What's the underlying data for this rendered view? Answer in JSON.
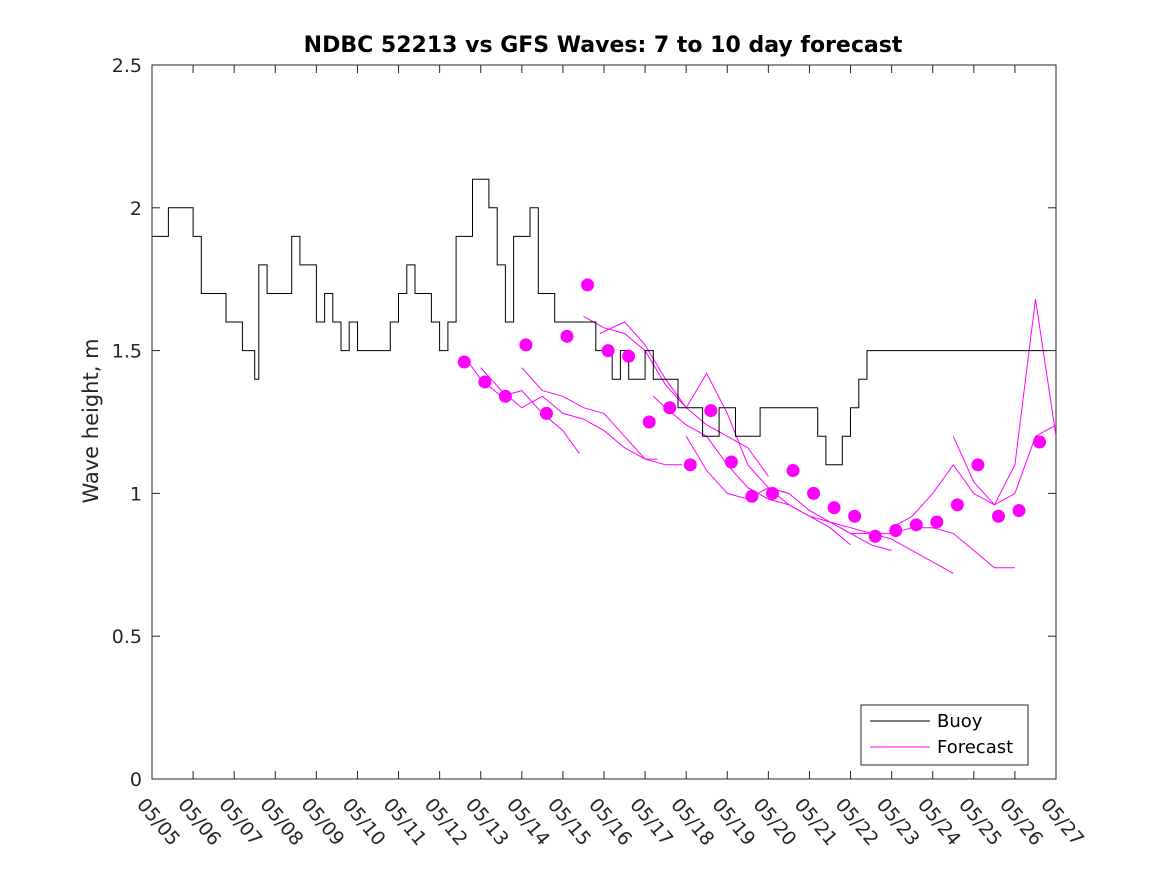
{
  "chart_data": {
    "type": "line",
    "title": "NDBC 52213 vs GFS Waves: 7 to 10 day forecast",
    "xlabel": "",
    "ylabel": "Wave height, m",
    "x_tick_labels": [
      "05/05",
      "05/06",
      "05/07",
      "05/08",
      "05/09",
      "05/10",
      "05/11",
      "05/12",
      "05/13",
      "05/14",
      "05/15",
      "05/16",
      "05/17",
      "05/18",
      "05/19",
      "05/20",
      "05/21",
      "05/22",
      "05/23",
      "05/24",
      "05/25",
      "05/26",
      "05/27"
    ],
    "y_ticks": [
      0,
      0.5,
      1,
      1.5,
      2,
      2.5
    ],
    "y_tick_labels": [
      "0",
      "0.5",
      "1",
      "1.5",
      "2",
      "2.5"
    ],
    "xlim": [
      "05/05",
      "05/27"
    ],
    "ylim": [
      0,
      2.5
    ],
    "grid": false,
    "legend_position": "bottom-right",
    "colors": {
      "buoy": "#000000",
      "forecast": "#ff00ff"
    },
    "series": [
      {
        "name": "Buoy",
        "x_days_since_05_05": [
          0,
          0.2,
          0.4,
          0.6,
          0.8,
          1.0,
          1.2,
          1.4,
          1.6,
          1.8,
          2.0,
          2.2,
          2.4,
          2.5,
          2.6,
          2.8,
          3.0,
          3.2,
          3.4,
          3.6,
          3.8,
          4.0,
          4.2,
          4.4,
          4.6,
          4.8,
          5.0,
          5.2,
          5.4,
          5.6,
          5.8,
          6.0,
          6.2,
          6.4,
          6.6,
          6.8,
          7.0,
          7.2,
          7.4,
          7.6,
          7.8,
          8.0,
          8.2,
          8.4,
          8.6,
          8.8,
          9.0,
          9.2,
          9.4,
          9.6,
          9.8,
          10.0,
          10.2,
          10.4,
          10.6,
          10.8,
          11.0,
          11.2,
          11.4,
          11.6,
          11.8,
          12.0,
          12.2,
          12.4,
          12.6,
          12.8,
          13.0,
          13.2,
          13.4,
          13.6,
          13.8,
          14.0,
          14.2,
          14.4,
          14.6,
          14.8,
          15.0,
          15.2,
          15.4,
          15.6,
          15.8,
          16.0,
          16.2,
          16.4,
          16.6,
          16.8,
          17.0,
          17.2,
          17.4,
          17.6,
          17.8,
          18.0,
          18.2,
          18.4,
          18.6,
          18.8,
          19.0,
          19.2,
          19.4,
          19.6,
          19.8,
          20.0,
          20.2,
          20.4,
          20.6,
          20.8,
          21.0,
          21.2,
          21.4,
          21.6,
          21.8
        ],
        "values": [
          1.9,
          1.9,
          2.0,
          2.0,
          2.0,
          1.9,
          1.7,
          1.7,
          1.7,
          1.6,
          1.6,
          1.5,
          1.5,
          1.4,
          1.8,
          1.7,
          1.7,
          1.7,
          1.9,
          1.8,
          1.8,
          1.6,
          1.7,
          1.6,
          1.5,
          1.6,
          1.5,
          1.5,
          1.5,
          1.5,
          1.6,
          1.7,
          1.8,
          1.7,
          1.7,
          1.6,
          1.5,
          1.6,
          1.9,
          1.9,
          2.1,
          2.1,
          2.0,
          1.8,
          1.6,
          1.9,
          1.9,
          2.0,
          1.7,
          1.7,
          1.6,
          1.6,
          1.6,
          1.6,
          1.6,
          1.5,
          1.5,
          1.4,
          1.5,
          1.4,
          1.4,
          1.5,
          1.4,
          1.4,
          1.4,
          1.3,
          1.3,
          1.3,
          1.2,
          1.2,
          1.3,
          1.3,
          1.2,
          1.2,
          1.2,
          1.3,
          1.3,
          1.3,
          1.3,
          1.3,
          1.3,
          1.3,
          1.2,
          1.1,
          1.1,
          1.2,
          1.3,
          1.4,
          1.5,
          1.5,
          1.5,
          1.5,
          1.5,
          1.5,
          1.5,
          1.5,
          1.5,
          1.5,
          1.5,
          1.5,
          1.5,
          1.5,
          1.5,
          1.5,
          1.5,
          1.5,
          1.5,
          1.5,
          1.5,
          1.5
        ]
      },
      {
        "name": "Forecast",
        "forecast_runs": [
          {
            "x_days_since_05_05": [
              7.6,
              8.0,
              8.5,
              9.0,
              9.5,
              10.0,
              10.4
            ],
            "values": [
              1.48,
              1.4,
              1.34,
              1.36,
              1.28,
              1.22,
              1.14
            ]
          },
          {
            "x_days_since_05_05": [
              8.0,
              8.5,
              9.0,
              9.5,
              10.0,
              10.5,
              11.0,
              11.5,
              12.0,
              12.3
            ],
            "values": [
              1.44,
              1.36,
              1.3,
              1.34,
              1.28,
              1.26,
              1.22,
              1.16,
              1.12,
              1.12
            ]
          },
          {
            "x_days_since_05_05": [
              9.0,
              9.5,
              10.0,
              10.5,
              11.0,
              11.5,
              12.0,
              12.5,
              12.9
            ],
            "values": [
              1.44,
              1.36,
              1.34,
              1.3,
              1.28,
              1.2,
              1.12,
              1.1,
              1.1
            ]
          },
          {
            "x_days_since_05_05": [
              10.5,
              11.0,
              11.5,
              12.0,
              12.5,
              13.0,
              13.5,
              14.0,
              14.5,
              15.0
            ],
            "values": [
              1.62,
              1.58,
              1.56,
              1.5,
              1.38,
              1.3,
              1.24,
              1.2,
              1.16,
              1.06
            ]
          },
          {
            "x_days_since_05_05": [
              10.9,
              11.5,
              12.0,
              12.5,
              13.0,
              13.5,
              14.0,
              14.5,
              15.0,
              15.5
            ],
            "values": [
              1.56,
              1.6,
              1.52,
              1.4,
              1.3,
              1.42,
              1.28,
              1.1,
              1.02,
              1.0
            ]
          },
          {
            "x_days_since_05_05": [
              12.2,
              12.5,
              13.0,
              13.5,
              14.0,
              14.5,
              15.0,
              15.5,
              16.0,
              16.5,
              17.0
            ],
            "values": [
              1.34,
              1.3,
              1.24,
              1.2,
              1.1,
              1.02,
              0.98,
              0.96,
              0.92,
              0.88,
              0.82
            ]
          },
          {
            "x_days_since_05_05": [
              13.0,
              13.5,
              14.0,
              14.5,
              15.0,
              15.5,
              16.0,
              16.5,
              17.0,
              17.5,
              18.0
            ],
            "values": [
              1.2,
              1.08,
              1.0,
              0.98,
              1.02,
              1.0,
              0.94,
              0.9,
              0.86,
              0.82,
              0.8
            ]
          },
          {
            "x_days_since_05_05": [
              15.0,
              15.5,
              16.0,
              16.5,
              17.0,
              17.5,
              18.0,
              18.5,
              19.0,
              19.5
            ],
            "values": [
              1.02,
              0.96,
              0.92,
              0.9,
              0.88,
              0.86,
              0.84,
              0.8,
              0.76,
              0.72
            ]
          },
          {
            "x_days_since_05_05": [
              16.0,
              16.5,
              17.0,
              17.5,
              18.0,
              18.5,
              19.0,
              19.5,
              20.0,
              20.5,
              21.0
            ],
            "values": [
              0.94,
              0.9,
              0.86,
              0.86,
              0.86,
              0.88,
              0.88,
              0.86,
              0.8,
              0.74,
              0.74
            ]
          },
          {
            "x_days_since_05_05": [
              18.0,
              18.5,
              19.0,
              19.5,
              20.0,
              20.5,
              21.0,
              21.5,
              22.0
            ],
            "values": [
              0.88,
              0.92,
              1.0,
              1.1,
              1.0,
              0.96,
              1.1,
              1.68,
              1.2
            ]
          },
          {
            "x_days_since_05_05": [
              19.5,
              20.0,
              20.5,
              21.0,
              21.5,
              22.0
            ],
            "values": [
              1.2,
              1.04,
              0.96,
              1.0,
              1.2,
              1.24
            ]
          }
        ]
      }
    ],
    "forecast_markers": {
      "x_days_since_05_05": [
        7.6,
        8.1,
        8.6,
        9.1,
        9.6,
        10.1,
        10.6,
        11.1,
        11.6,
        12.1,
        12.6,
        13.1,
        13.6,
        14.1,
        14.6,
        15.1,
        15.6,
        16.1,
        16.6,
        17.1,
        17.6,
        18.1,
        18.6,
        19.1,
        19.6,
        20.1,
        20.6,
        21.1
      ],
      "values": [
        1.46,
        1.39,
        1.34,
        1.52,
        1.28,
        1.55,
        1.73,
        1.5,
        1.48,
        1.25,
        1.3,
        1.1,
        1.29,
        1.11,
        0.99,
        1.0,
        1.08,
        1.0,
        0.95,
        0.92,
        0.85,
        0.87,
        0.89,
        0.9,
        0.96,
        1.1,
        0.92,
        0.94
      ],
      "last_marker": {
        "x_days_since_05_05": 21.6,
        "value": 1.18
      }
    }
  },
  "legend": {
    "buoy_label": "Buoy",
    "forecast_label": "Forecast"
  }
}
